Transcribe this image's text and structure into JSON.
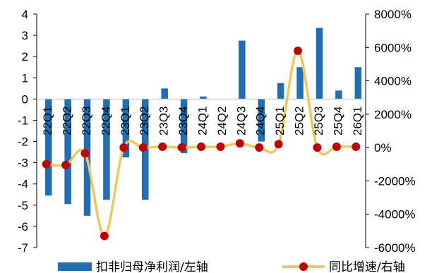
{
  "chart_data": {
    "type": "bar",
    "categories": [
      "22Q1",
      "22Q2",
      "22Q3",
      "22Q4",
      "23Q1",
      "23Q2",
      "23Q3",
      "23Q4",
      "24Q1",
      "24Q2",
      "24Q3",
      "24Q4",
      "25Q1",
      "25Q2",
      "25Q3",
      "25Q4",
      "26Q1"
    ],
    "series": [
      {
        "name": "扣非归母净利润/左轴",
        "type": "bar",
        "axis": "left",
        "color": "#1f6fb2",
        "values": [
          -4.55,
          -4.95,
          -5.5,
          -4.75,
          -2.75,
          -4.75,
          0.5,
          -2.55,
          0.12,
          0.0,
          2.75,
          -2.0,
          0.75,
          1.5,
          3.35,
          0.4,
          1.5
        ]
      },
      {
        "name": "同比增速/右轴",
        "type": "line",
        "axis": "right",
        "color": "#f0c75e",
        "marker_color": "#c00000",
        "values": [
          -1000,
          -1050,
          -350,
          -5300,
          0,
          0,
          50,
          0,
          50,
          50,
          250,
          0,
          200,
          5800,
          0,
          50,
          50
        ]
      }
    ],
    "left_axis": {
      "ylim": [
        -7,
        4
      ],
      "ticks": [
        "4",
        "3",
        "2",
        "1",
        "0",
        "-1",
        "-2",
        "-3",
        "-4",
        "-5",
        "-6",
        "-7"
      ]
    },
    "right_axis": {
      "ylim": [
        -6000,
        8000
      ],
      "ticks": [
        "8000%",
        "6000%",
        "4000%",
        "2000%",
        "0%",
        "-2000%",
        "-4000%",
        "-6000%"
      ]
    },
    "legend": {
      "position": "bottom",
      "items": [
        "扣非归母净利润/左轴",
        "同比增速/右轴"
      ]
    }
  }
}
